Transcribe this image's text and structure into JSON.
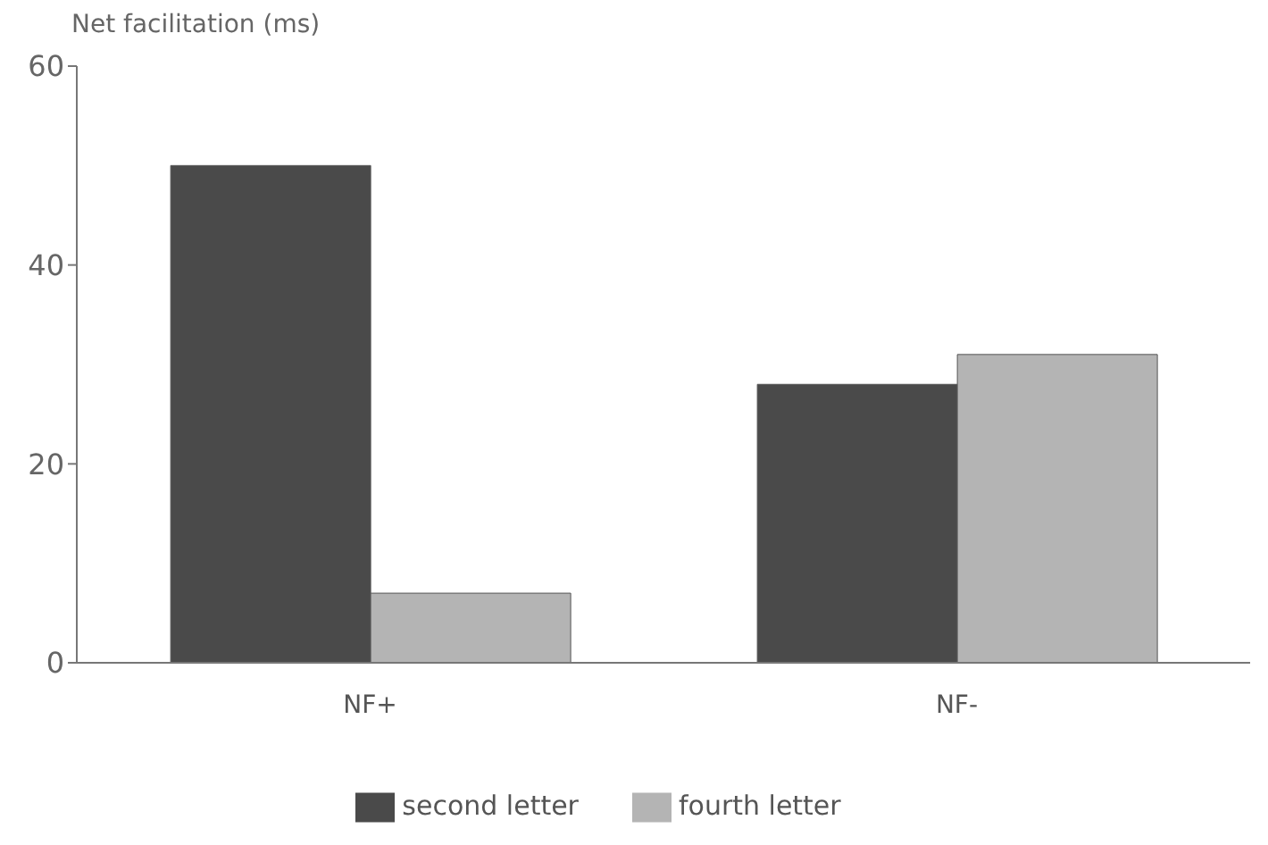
{
  "chart_data": {
    "type": "bar",
    "ylabel": "Net facilitation (ms)",
    "categories": [
      "NF+",
      "NF-"
    ],
    "series": [
      {
        "name": "second letter",
        "color": "#4a4a4a",
        "values": [
          50,
          28
        ]
      },
      {
        "name": "fourth letter",
        "color": "#b4b4b4",
        "values": [
          7,
          31
        ]
      }
    ],
    "ylim": [
      0,
      60
    ],
    "yticks": [
      0,
      20,
      40,
      60
    ],
    "grid": false,
    "legend": "bottom"
  }
}
